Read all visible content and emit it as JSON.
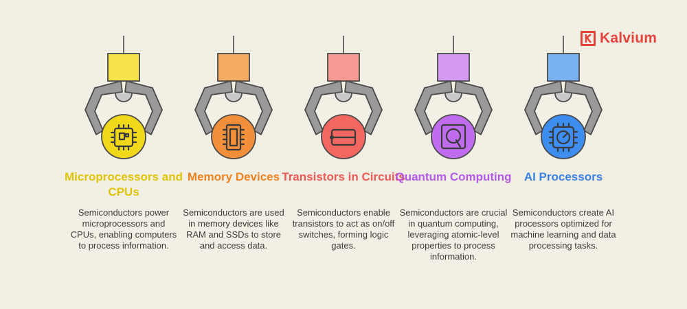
{
  "brand": {
    "name": "Kalvium",
    "color": "#e5433b",
    "icon": "kalvium-logo-icon"
  },
  "items": [
    {
      "title": "Microprocessors and CPUs",
      "description": "Semiconductors power microprocessors and CPUs, enabling computers to process information.",
      "icon": "chip-icon",
      "color": "#e5c600",
      "block_color": "#f7e44c",
      "circle_color": "#f2d81a",
      "title_color": "#e0c40a"
    },
    {
      "title": "Memory Devices",
      "description": "Semiconductors are used in memory devices like RAM and SSDs to store and access data.",
      "icon": "memory-module-icon",
      "color": "#f28a1e",
      "block_color": "#f6ac62",
      "circle_color": "#f28f3a",
      "title_color": "#ef8424"
    },
    {
      "title": "Transistors in Circuits",
      "description": "Semiconductors enable transistors to act as on/off switches, forming logic gates.",
      "icon": "transistor-icon",
      "color": "#ee5a5a",
      "block_color": "#f79a93",
      "circle_color": "#f2675f",
      "title_color": "#ec5b55"
    },
    {
      "title": "Quantum Computing",
      "description": "Semiconductors are crucial in quantum computing, leveraging atomic-level properties to process information.",
      "icon": "quantum-q-icon",
      "color": "#b55ce8",
      "block_color": "#d59bf3",
      "circle_color": "#c06cef",
      "title_color": "#b45ae6"
    },
    {
      "title": "AI Processors",
      "description": "Semiconductors create AI processors optimized for machine learning and data processing tasks.",
      "icon": "ai-processor-icon",
      "color": "#3a86e6",
      "block_color": "#7ab2f2",
      "circle_color": "#3e8df0",
      "title_color": "#3c82e3"
    }
  ]
}
